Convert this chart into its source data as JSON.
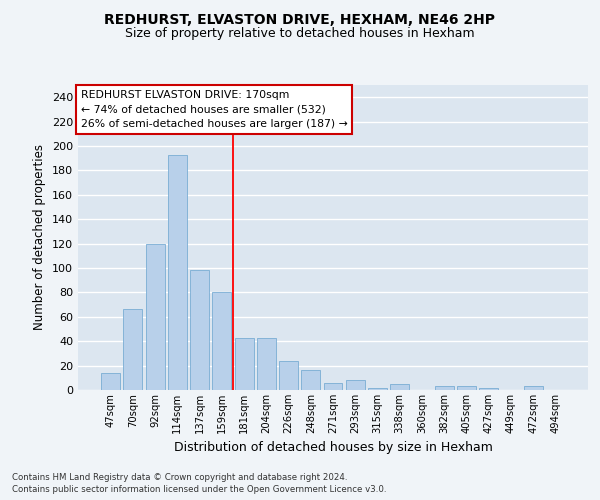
{
  "title": "REDHURST, ELVASTON DRIVE, HEXHAM, NE46 2HP",
  "subtitle": "Size of property relative to detached houses in Hexham",
  "xlabel": "Distribution of detached houses by size in Hexham",
  "ylabel": "Number of detached properties",
  "categories": [
    "47sqm",
    "70sqm",
    "92sqm",
    "114sqm",
    "137sqm",
    "159sqm",
    "181sqm",
    "204sqm",
    "226sqm",
    "248sqm",
    "271sqm",
    "293sqm",
    "315sqm",
    "338sqm",
    "360sqm",
    "382sqm",
    "405sqm",
    "427sqm",
    "449sqm",
    "472sqm",
    "494sqm"
  ],
  "values": [
    14,
    66,
    120,
    193,
    98,
    80,
    43,
    43,
    24,
    16,
    6,
    8,
    2,
    5,
    0,
    3,
    3,
    2,
    0,
    3,
    0
  ],
  "bar_color": "#b8d0ea",
  "bar_edge_color": "#7aadd4",
  "background_color": "#dce6f0",
  "grid_color": "#ffffff",
  "ylim": [
    0,
    250
  ],
  "yticks": [
    0,
    20,
    40,
    60,
    80,
    100,
    120,
    140,
    160,
    180,
    200,
    220,
    240
  ],
  "redline_x": 5.5,
  "annotation_text": "REDHURST ELVASTON DRIVE: 170sqm\n← 74% of detached houses are smaller (532)\n26% of semi-detached houses are larger (187) →",
  "annotation_box_color": "#ffffff",
  "annotation_box_edge": "#cc0000",
  "footer_line1": "Contains HM Land Registry data © Crown copyright and database right 2024.",
  "footer_line2": "Contains public sector information licensed under the Open Government Licence v3.0."
}
